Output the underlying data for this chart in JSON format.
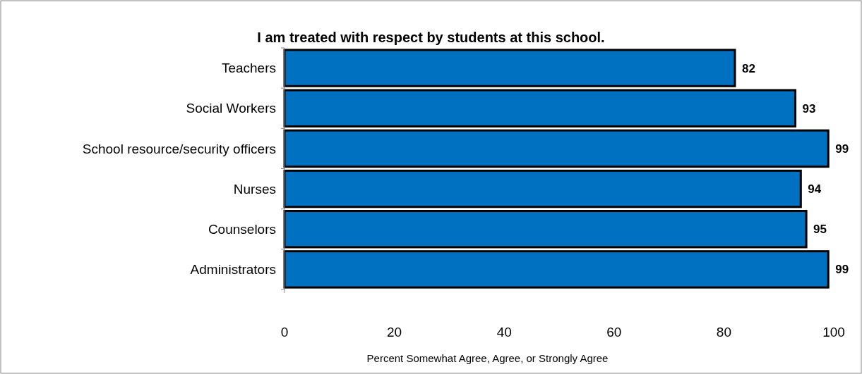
{
  "chart_data": {
    "type": "bar",
    "orientation": "horizontal",
    "title": "I am treated with respect by students at this school.",
    "xlabel": "Percent Somewhat Agree, Agree, or Strongly Agree",
    "categories": [
      "Teachers",
      "Social Workers",
      "School resource/security officers",
      "Nurses",
      "Counselors",
      "Administrators"
    ],
    "values": [
      82,
      93,
      99,
      94,
      95,
      99
    ],
    "color": "#0070c0",
    "data_labels": true,
    "xlim": [
      0,
      100
    ],
    "xticks": [
      0,
      20,
      40,
      60,
      80,
      100
    ]
  }
}
